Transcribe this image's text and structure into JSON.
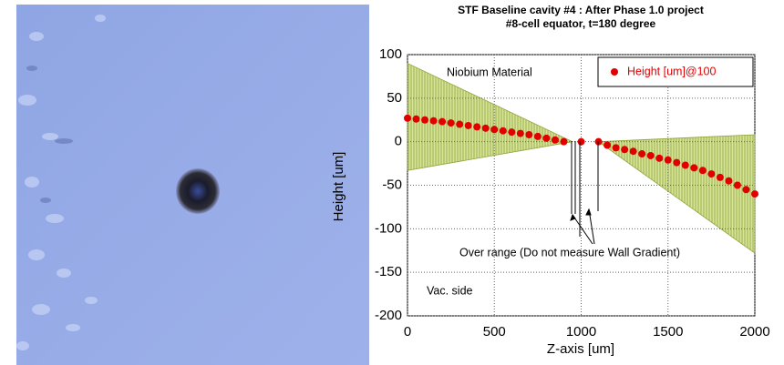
{
  "chart_data": {
    "type": "scatter",
    "title": "STF Baseline cavity #4 : After Phase 1.0 project",
    "subtitle": "#8-cell equator, t=180 degree",
    "xlabel": "Z-axis [um]",
    "ylabel": "Height [um]",
    "xlim": [
      0,
      2000
    ],
    "xticks": [
      0,
      500,
      1000,
      1500,
      2000
    ],
    "ylim": [
      -200,
      100
    ],
    "yticks": [
      -200,
      -150,
      -100,
      -50,
      0,
      50,
      100
    ],
    "grid": true,
    "legend": "upper right",
    "annotations": [
      "Niobium Material",
      "Over range (Do not measure Wall Gradient)",
      "Vac. side"
    ],
    "bands": [
      {
        "color": "#c5d77e",
        "x": [
          0,
          950
        ],
        "upper": [
          90,
          0
        ],
        "lower": [
          -33,
          0
        ]
      },
      {
        "color": "#c5d77e",
        "x": [
          1100,
          2000
        ],
        "upper": [
          0,
          8
        ],
        "lower": [
          0,
          -128
        ]
      }
    ],
    "series": [
      {
        "name": "Height [um]@100",
        "color": "#e00000",
        "x": [
          0,
          50,
          100,
          150,
          200,
          250,
          300,
          350,
          400,
          450,
          500,
          550,
          600,
          650,
          700,
          750,
          800,
          850,
          900,
          1000,
          1100,
          1150,
          1200,
          1250,
          1300,
          1350,
          1400,
          1450,
          1500,
          1550,
          1600,
          1650,
          1700,
          1750,
          1800,
          1850,
          1900,
          1950,
          2000
        ],
        "values": [
          27,
          26,
          25,
          24,
          23,
          21.5,
          20,
          18.5,
          17,
          15.5,
          14,
          12.5,
          11,
          9.5,
          8,
          6,
          4,
          2,
          0,
          0,
          0,
          -4,
          -7,
          -9,
          -11,
          -14,
          -16,
          -19,
          -21,
          -24,
          -27,
          -30,
          -33,
          -37,
          -41,
          -45,
          -50,
          -55,
          -60
        ]
      }
    ]
  }
}
